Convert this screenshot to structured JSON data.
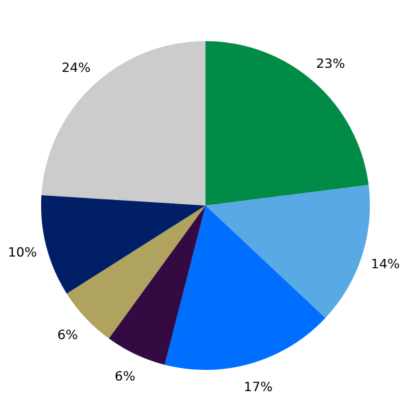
{
  "chart_data": {
    "type": "pie",
    "start": "top",
    "direction": "clockwise",
    "slices": [
      {
        "value": 23,
        "label": "23%",
        "color": "#008b46"
      },
      {
        "value": 14,
        "label": "14%",
        "color": "#58a9e4"
      },
      {
        "value": 17,
        "label": "17%",
        "color": "#006eff"
      },
      {
        "value": 6,
        "label": "6%",
        "color": "#330a42"
      },
      {
        "value": 6,
        "label": "6%",
        "color": "#afa35f"
      },
      {
        "value": 10,
        "label": "10%",
        "color": "#001f66"
      },
      {
        "value": 24,
        "label": "24%",
        "color": "#cccccc"
      }
    ]
  }
}
